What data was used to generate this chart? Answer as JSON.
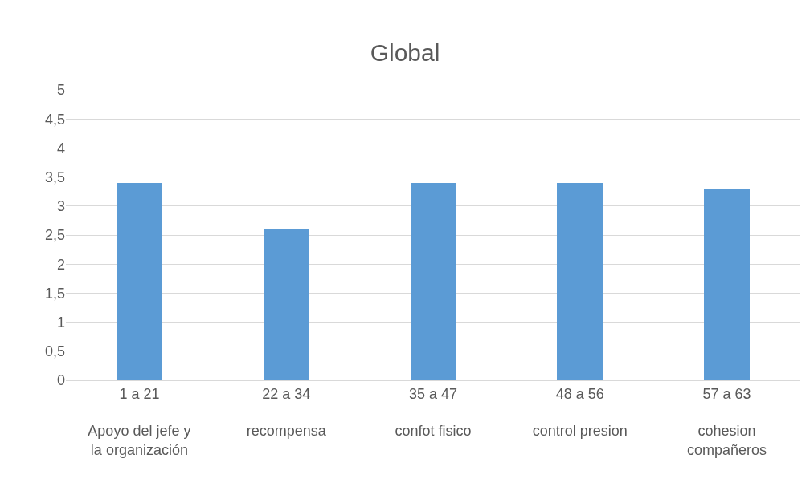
{
  "chart_data": {
    "type": "bar",
    "title": "Global",
    "categories": [
      "1 a 21\nApoyo del jefe y la organización",
      "22 a 34\nrecompensa",
      "35 a 47\nconfot fisico",
      "48 a 56\ncontrol presion",
      "57 a 63\ncohesion compañeros"
    ],
    "values": [
      3.4,
      2.6,
      3.4,
      3.4,
      3.3
    ],
    "color": "#5b9bd5",
    "ylim": [
      0,
      5
    ],
    "yticks": [
      0,
      {
        "value": 0.5,
        "label": "0,5"
      },
      1,
      {
        "value": 1.5,
        "label": "1,5"
      },
      2,
      {
        "value": 2.5,
        "label": "2,5"
      },
      3,
      {
        "value": 3.5,
        "label": "3,5"
      },
      4,
      {
        "value": 4.5,
        "label": "4,5"
      },
      5
    ],
    "grid": "y"
  }
}
